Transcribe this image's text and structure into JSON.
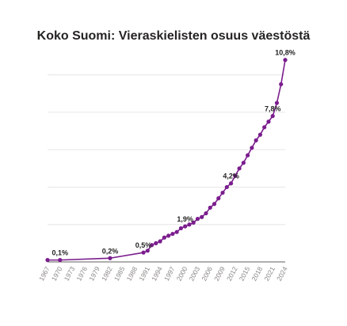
{
  "chart_data": {
    "type": "line",
    "title": "Koko Suomi: Vieraskielisten osuus väestöstä",
    "xlabel": "",
    "ylabel": "",
    "x": [
      1967,
      1970,
      1982,
      1990,
      1991,
      1992,
      1993,
      1994,
      1995,
      1996,
      1997,
      1998,
      1999,
      2000,
      2001,
      2002,
      2003,
      2004,
      2005,
      2006,
      2007,
      2008,
      2009,
      2010,
      2011,
      2012,
      2013,
      2014,
      2015,
      2016,
      2017,
      2018,
      2019,
      2020,
      2021,
      2022,
      2023,
      2024
    ],
    "values": [
      0.1,
      0.1,
      0.2,
      0.5,
      0.6,
      0.9,
      1.0,
      1.1,
      1.3,
      1.4,
      1.5,
      1.6,
      1.8,
      1.9,
      2.0,
      2.1,
      2.3,
      2.4,
      2.6,
      2.9,
      3.1,
      3.4,
      3.7,
      4.0,
      4.2,
      4.6,
      5.0,
      5.3,
      5.7,
      6.1,
      6.5,
      6.8,
      7.2,
      7.5,
      7.8,
      8.5,
      9.5,
      10.8
    ],
    "x_tick_labels": [
      "1967",
      "1970",
      "1973",
      "1976",
      "1979",
      "1982",
      "1985",
      "1988",
      "1991",
      "1994",
      "1997",
      "2000",
      "2003",
      "2006",
      "2009",
      "2012",
      "2015",
      "2018",
      "2021",
      "2024"
    ],
    "x_ticks": [
      1967,
      1970,
      1973,
      1976,
      1979,
      1982,
      1985,
      1988,
      1991,
      1994,
      1997,
      2000,
      2003,
      2006,
      2009,
      2012,
      2015,
      2018,
      2021,
      2024
    ],
    "data_labels": [
      {
        "x": 1970,
        "value": 0.1,
        "text": "0,1%"
      },
      {
        "x": 1982,
        "value": 0.2,
        "text": "0,2%"
      },
      {
        "x": 1990,
        "value": 0.5,
        "text": "0,5%"
      },
      {
        "x": 2000,
        "value": 1.9,
        "text": "1,9%"
      },
      {
        "x": 2011,
        "value": 4.2,
        "text": "4,2%"
      },
      {
        "x": 2021,
        "value": 7.8,
        "text": "7,8%"
      },
      {
        "x": 2024,
        "value": 10.8,
        "text": "10,8%"
      }
    ],
    "xlim": [
      1967,
      2024
    ],
    "ylim": [
      0,
      11
    ],
    "y_gridlines": [
      0,
      2,
      4,
      6,
      8,
      10
    ],
    "grid": true,
    "legend": "none",
    "colors": {
      "line": "#7b1d8e",
      "marker": "#7b1d8e",
      "grid": "#e6e6e6",
      "axis": "#605e5c"
    }
  }
}
